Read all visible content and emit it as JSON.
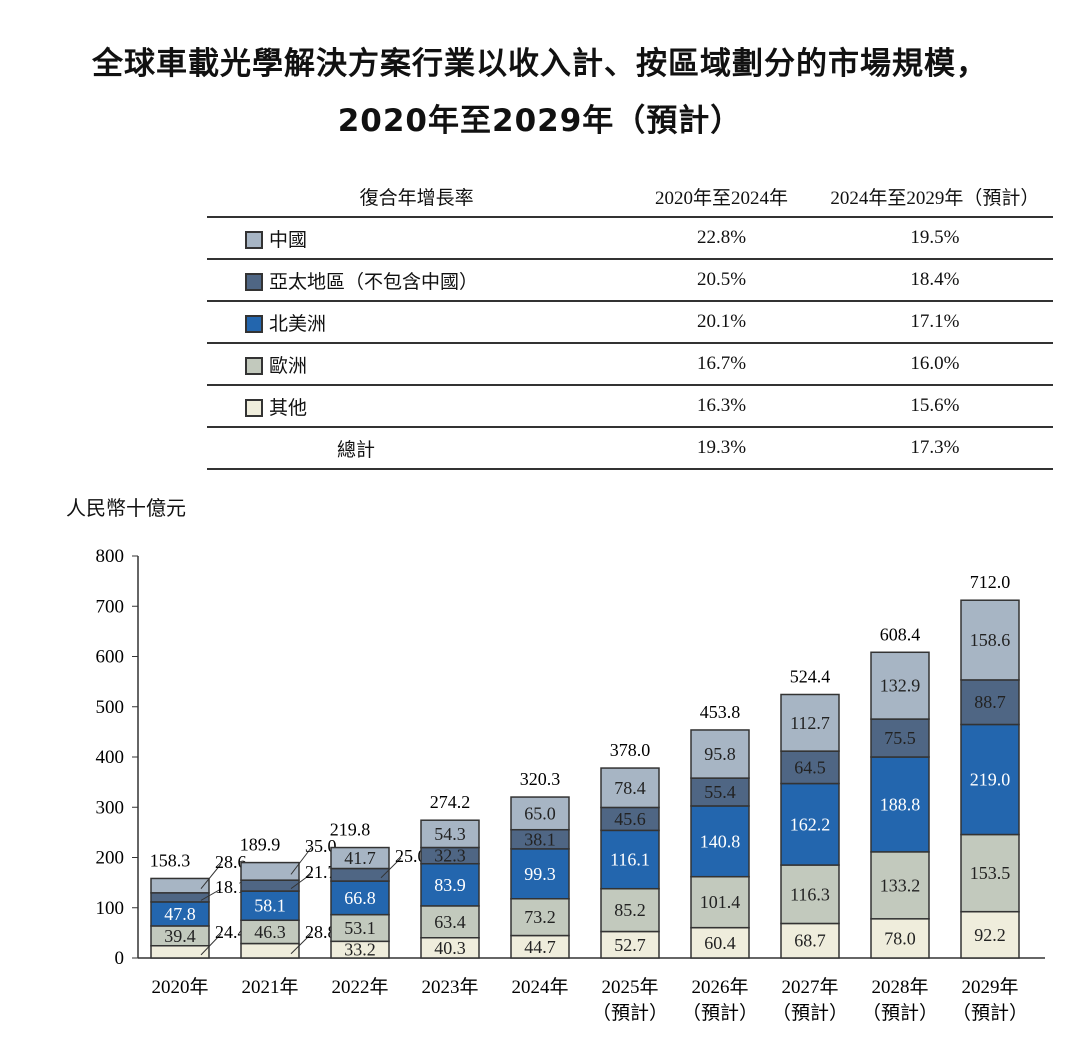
{
  "title_line1": "全球車載光學解決方案行業以收入計、按區域劃分的市場規模，",
  "title_line2": "2020年至2029年（預計）",
  "cagr_table": {
    "header": [
      "復合年增長率",
      "2020年至2024年",
      "2024年至2029年（預計）"
    ],
    "rows": [
      {
        "label": "中國",
        "color": "#a7b5c4",
        "a": "22.8%",
        "b": "19.5%"
      },
      {
        "label": "亞太地區（不包含中國）",
        "color": "#4f6684",
        "a": "20.5%",
        "b": "18.4%"
      },
      {
        "label": "北美洲",
        "color": "#2366ae",
        "a": "20.1%",
        "b": "17.1%"
      },
      {
        "label": "歐洲",
        "color": "#c2c9bd",
        "a": "16.7%",
        "b": "16.0%"
      },
      {
        "label": "其他",
        "color": "#efeddc",
        "a": "16.3%",
        "b": "15.6%"
      },
      {
        "label": "總計",
        "color": null,
        "a": "19.3%",
        "b": "17.3%"
      }
    ]
  },
  "chart_data": {
    "type": "bar",
    "stacked": true,
    "ylabel": "人民幣十億元",
    "ylim": [
      0,
      800
    ],
    "yticks": [
      0,
      100,
      200,
      300,
      400,
      500,
      600,
      700,
      800
    ],
    "categories": [
      [
        "2020年"
      ],
      [
        "2021年"
      ],
      [
        "2022年"
      ],
      [
        "2023年"
      ],
      [
        "2024年"
      ],
      [
        "2025年",
        "（預計）"
      ],
      [
        "2026年",
        "（預計）"
      ],
      [
        "2027年",
        "（預計）"
      ],
      [
        "2028年",
        "（預計）"
      ],
      [
        "2029年",
        "（預計）"
      ]
    ],
    "series": [
      {
        "name": "其他",
        "color": "#efeddc",
        "values": [
          24.4,
          28.8,
          33.2,
          40.3,
          44.7,
          52.7,
          60.4,
          68.7,
          78.0,
          92.2
        ]
      },
      {
        "name": "歐洲",
        "color": "#c2c9bd",
        "values": [
          39.4,
          46.3,
          53.1,
          63.4,
          73.2,
          85.2,
          101.4,
          116.3,
          133.2,
          153.5
        ]
      },
      {
        "name": "北美洲",
        "color": "#2366ae",
        "values": [
          47.8,
          58.1,
          66.8,
          83.9,
          99.3,
          116.1,
          140.8,
          162.2,
          188.8,
          219.0
        ]
      },
      {
        "name": "亞太地區（不包含中國）",
        "color": "#4f6684",
        "values": [
          18.1,
          21.7,
          25.0,
          32.3,
          38.1,
          45.6,
          55.4,
          64.5,
          75.5,
          88.7
        ]
      },
      {
        "name": "中國",
        "color": "#a7b5c4",
        "values": [
          28.6,
          35.0,
          41.7,
          54.3,
          65.0,
          78.4,
          95.8,
          112.7,
          132.9,
          158.6
        ]
      }
    ],
    "totals": [
      "158.3",
      "189.9",
      "219.8",
      "274.2",
      "320.3",
      "378.0",
      "453.8",
      "524.4",
      "608.4",
      "712.0"
    ],
    "grid": false,
    "legend": "table above chart"
  }
}
